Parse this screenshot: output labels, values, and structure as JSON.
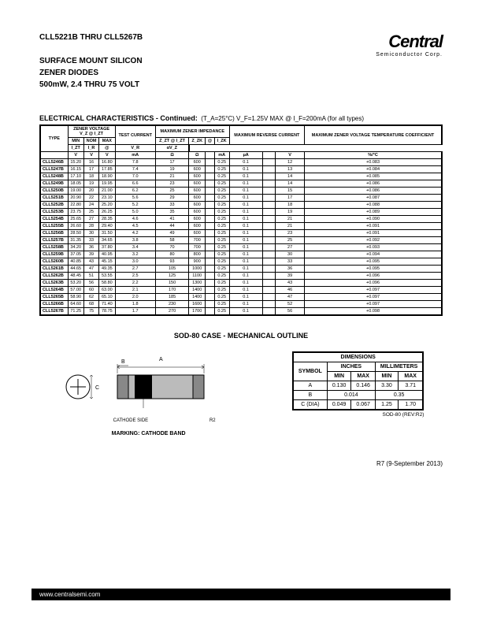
{
  "header": {
    "line1": "CLL5221B THRU CLL5267B",
    "line2": "SURFACE MOUNT SILICON",
    "line3": "ZENER DIODES",
    "line4": "500mW, 2.4 THRU 75 VOLT",
    "logo_main": "Central",
    "logo_sub": "Semiconductor Corp."
  },
  "elec": {
    "title": "ELECTRICAL CHARACTERISTICS - Continued:",
    "cond": "(T_A=25°C) V_F=1.25V MAX @ I_F=200mA (for all types)",
    "cols": {
      "type": "TYPE",
      "zener": "ZENER\nVOLTAGE",
      "zener_sub": "V_Z @ I_ZT",
      "test": "TEST\nCURRENT",
      "maximp": "MAXIMUM ZENER\nIMPEDANCE",
      "maxrev": "MAXIMUM\nREVERSE\nCURRENT",
      "maxtemp": "MAXIMUM\nZENER VOLTAGE\nTEMPERATURE\nCOEFFICIENT",
      "min": "MIN",
      "nom": "NOM",
      "max": "MAX",
      "izt": "I_ZT",
      "zzt": "Z_ZT @ I_ZT",
      "zzk": "Z_ZK",
      "at": "@",
      "izk": "I_ZK",
      "ir": "I_R",
      "vr": "V_R",
      "avz": "αV_Z",
      "v": "V",
      "ma": "mA",
      "ohm": "Ω",
      "ua": "μA",
      "pct": "%/°C"
    },
    "rows": [
      [
        "CLL5246B",
        "15.20",
        "16",
        "16.80",
        "7.8",
        "17",
        "600",
        "0.25",
        "0.1",
        "12",
        "+0.083"
      ],
      [
        "CLL5247B",
        "16.15",
        "17",
        "17.85",
        "7.4",
        "19",
        "600",
        "0.25",
        "0.1",
        "13",
        "+0.084"
      ],
      [
        "CLL5248B",
        "17.10",
        "18",
        "18.90",
        "7.0",
        "21",
        "600",
        "0.25",
        "0.1",
        "14",
        "+0.085"
      ],
      [
        "CLL5249B",
        "18.05",
        "19",
        "19.95",
        "6.6",
        "23",
        "600",
        "0.25",
        "0.1",
        "14",
        "+0.086"
      ],
      [
        "CLL5250B",
        "19.00",
        "20",
        "21.00",
        "6.2",
        "25",
        "600",
        "0.25",
        "0.1",
        "15",
        "+0.086"
      ],
      [
        "CLL5251B",
        "20.90",
        "22",
        "23.10",
        "5.6",
        "29",
        "600",
        "0.25",
        "0.1",
        "17",
        "+0.087"
      ],
      [
        "CLL5252B",
        "22.80",
        "24",
        "25.20",
        "5.2",
        "33",
        "600",
        "0.25",
        "0.1",
        "18",
        "+0.088"
      ],
      [
        "CLL5253B",
        "23.75",
        "25",
        "26.25",
        "5.0",
        "35",
        "600",
        "0.25",
        "0.1",
        "19",
        "+0.089"
      ],
      [
        "CLL5254B",
        "25.65",
        "27",
        "28.35",
        "4.6",
        "41",
        "600",
        "0.25",
        "0.1",
        "21",
        "+0.090"
      ],
      [
        "CLL5255B",
        "26.60",
        "28",
        "29.40",
        "4.5",
        "44",
        "600",
        "0.25",
        "0.1",
        "21",
        "+0.091"
      ],
      [
        "CLL5256B",
        "28.50",
        "30",
        "31.50",
        "4.2",
        "49",
        "600",
        "0.25",
        "0.1",
        "23",
        "+0.091"
      ],
      [
        "CLL5257B",
        "31.35",
        "33",
        "34.65",
        "3.8",
        "58",
        "700",
        "0.25",
        "0.1",
        "25",
        "+0.092"
      ],
      [
        "CLL5258B",
        "34.20",
        "36",
        "37.80",
        "3.4",
        "70",
        "700",
        "0.25",
        "0.1",
        "27",
        "+0.093"
      ],
      [
        "CLL5259B",
        "37.05",
        "39",
        "40.95",
        "3.2",
        "80",
        "800",
        "0.25",
        "0.1",
        "30",
        "+0.094"
      ],
      [
        "CLL5260B",
        "40.85",
        "43",
        "45.15",
        "3.0",
        "93",
        "900",
        "0.25",
        "0.1",
        "33",
        "+0.095"
      ],
      [
        "CLL5261B",
        "44.65",
        "47",
        "49.35",
        "2.7",
        "105",
        "1000",
        "0.25",
        "0.1",
        "36",
        "+0.095"
      ],
      [
        "CLL5262B",
        "48.45",
        "51",
        "53.55",
        "2.5",
        "125",
        "1100",
        "0.25",
        "0.1",
        "39",
        "+0.096"
      ],
      [
        "CLL5263B",
        "53.20",
        "56",
        "58.80",
        "2.2",
        "150",
        "1300",
        "0.25",
        "0.1",
        "43",
        "+0.096"
      ],
      [
        "CLL5264B",
        "57.00",
        "60",
        "63.00",
        "2.1",
        "170",
        "1400",
        "0.25",
        "0.1",
        "46",
        "+0.097"
      ],
      [
        "CLL5265B",
        "58.90",
        "62",
        "65.10",
        "2.0",
        "185",
        "1400",
        "0.25",
        "0.1",
        "47",
        "+0.097"
      ],
      [
        "CLL5266B",
        "64.60",
        "68",
        "71.40",
        "1.8",
        "230",
        "1600",
        "0.25",
        "0.1",
        "52",
        "+0.097"
      ],
      [
        "CLL5267B",
        "71.25",
        "75",
        "78.75",
        "1.7",
        "270",
        "1700",
        "0.25",
        "0.1",
        "56",
        "+0.098"
      ]
    ]
  },
  "sod": {
    "title": "SOD-80 CASE - MECHANICAL OUTLINE",
    "marking": "MARKING: CATHODE BAND",
    "cathode": "CATHODE SIDE",
    "r2": "R2",
    "dim_title": "DIMENSIONS",
    "inches": "INCHES",
    "mm": "MILLIMETERS",
    "symbol": "SYMBOL",
    "min": "MIN",
    "max": "MAX",
    "rows": [
      [
        "A",
        "0.130",
        "0.146",
        "3.30",
        "3.71"
      ],
      [
        "B",
        "0.014",
        "",
        "0.35",
        ""
      ],
      [
        "C (DIA)",
        "0.049",
        "0.067",
        "1.25",
        "1.70"
      ]
    ],
    "rev": "SOD-80 (REV:R2)"
  },
  "footer": {
    "date": "R7 (9-September 2013)",
    "url": "www.centralsemi.com"
  }
}
